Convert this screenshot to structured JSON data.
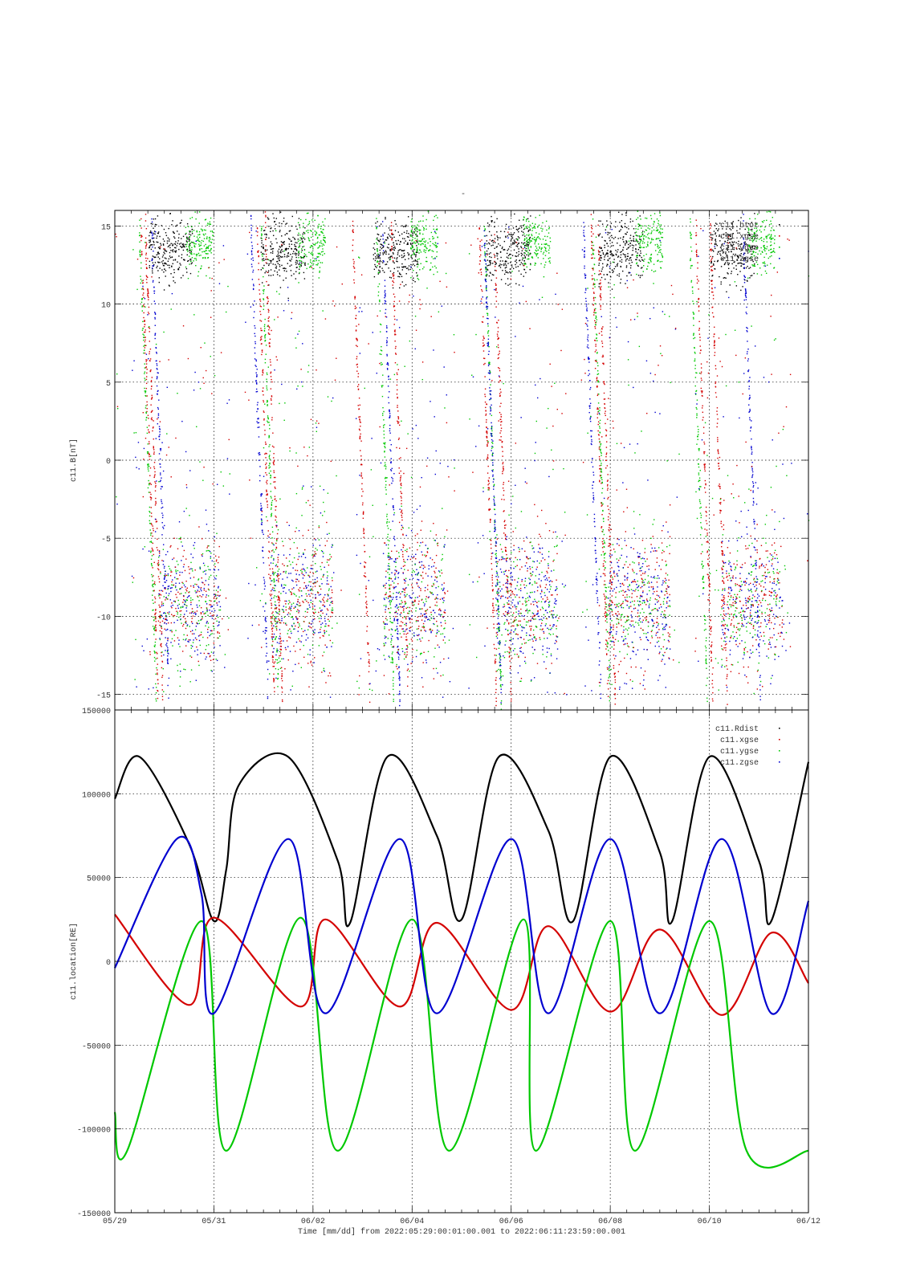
{
  "figure": {
    "top_title": "-",
    "footer_label": "Time [mm/dd]  from 2022:05:29:00:01:00.001  to  2022:06:11:23:59:00.001"
  },
  "colors": {
    "black": "#000000",
    "red": "#d40000",
    "green": "#00c800",
    "blue": "#0000d0",
    "grid": "#000000"
  },
  "chart_data": [
    {
      "type": "scatter",
      "title": "-",
      "ylabel": "c11.B[nT]",
      "xlabel": "",
      "xlim": [
        "2022-05-29",
        "2022-06-12"
      ],
      "ylim": [
        -16,
        16
      ],
      "y_ticks": [
        "-15",
        "-10",
        "-5",
        "0",
        "5",
        "10",
        "15"
      ],
      "x_ticks": [
        "05/29",
        "05/31",
        "06/02",
        "06/04",
        "06/06",
        "06/08",
        "06/10",
        "06/12"
      ],
      "grid": true,
      "legend_position": "top-right",
      "series": [
        {
          "name": "c11.btot",
          "color": "#000000"
        },
        {
          "name": "c11.xgse",
          "color": "#d40000"
        },
        {
          "name": "c11.ygse",
          "color": "#00c800"
        },
        {
          "name": "c11.zgse",
          "color": "#0000d0"
        }
      ]
    },
    {
      "type": "line",
      "title": "",
      "ylabel": "c11.location[RE]",
      "xlabel": "Time [mm/dd]  from 2022:05:29:00:01:00.001  to  2022:06:11:23:59:00.001",
      "xlim": [
        "2022-05-29",
        "2022-06-12"
      ],
      "ylim": [
        -150000,
        150000
      ],
      "y_ticks": [
        "-150000",
        "-100000",
        "-50000",
        "0",
        "50000",
        "100000",
        "150000"
      ],
      "x_ticks": [
        "05/29",
        "05/31",
        "06/02",
        "06/04",
        "06/06",
        "06/08",
        "06/10",
        "06/12"
      ],
      "grid": true,
      "legend_position": "top-right",
      "series": [
        {
          "name": "c11.Rdist",
          "color": "#000000",
          "x": [
            "2022-05-29T00:00",
            "2022-05-29T12:00",
            "2022-05-30T12:00",
            "2022-05-31T00:00",
            "2022-05-31T06:00",
            "2022-05-31T12:00",
            "2022-06-01T12:00",
            "2022-06-02T12:00",
            "2022-06-02T18:00",
            "2022-06-03T12:00",
            "2022-06-04T12:00",
            "2022-06-05T00:00",
            "2022-06-05T18:00",
            "2022-06-06T18:00",
            "2022-06-07T06:00",
            "2022-06-08T00:00",
            "2022-06-09T00:00",
            "2022-06-09T06:00",
            "2022-06-10T00:00",
            "2022-06-11T00:00",
            "2022-06-11T06:00",
            "2022-06-12T00:00"
          ],
          "y": [
            97000,
            122000,
            70000,
            24000,
            55000,
            105000,
            122000,
            60000,
            23000,
            122000,
            75000,
            25000,
            122000,
            78000,
            24000,
            122000,
            65000,
            24000,
            122000,
            60000,
            24000,
            119000
          ]
        },
        {
          "name": "c11.xgse",
          "color": "#d40000",
          "x": [
            "2022-05-29T00:00",
            "2022-05-30T12:00",
            "2022-05-31T00:00",
            "2022-06-01T18:00",
            "2022-06-02T06:00",
            "2022-06-03T18:00",
            "2022-06-04T12:00",
            "2022-06-06T00:00",
            "2022-06-06T18:00",
            "2022-06-08T00:00",
            "2022-06-09T00:00",
            "2022-06-10T06:00",
            "2022-06-11T06:00",
            "2022-06-12T00:00"
          ],
          "y": [
            28000,
            -26000,
            26000,
            -27000,
            25000,
            -27000,
            23000,
            -29000,
            21000,
            -30000,
            19000,
            -32000,
            17000,
            -13000
          ]
        },
        {
          "name": "c11.ygse",
          "color": "#00c800",
          "x": [
            "2022-05-29T00:00",
            "2022-05-29T06:00",
            "2022-05-30T18:00",
            "2022-05-31T06:00",
            "2022-06-01T18:00",
            "2022-06-02T12:00",
            "2022-06-04T00:00",
            "2022-06-04T18:00",
            "2022-06-06T06:00",
            "2022-06-06T12:00",
            "2022-06-08T00:00",
            "2022-06-08T12:00",
            "2022-06-10T00:00",
            "2022-06-10T18:00",
            "2022-06-12T00:00"
          ],
          "y": [
            -90000,
            -113000,
            24000,
            -113000,
            26000,
            -113000,
            25000,
            -113000,
            25000,
            -113000,
            24000,
            -113000,
            24000,
            -113000,
            -113000
          ]
        },
        {
          "name": "c11.zgse",
          "color": "#0000d0",
          "x": [
            "2022-05-29T00:00",
            "2022-05-30T06:00",
            "2022-05-30T18:00",
            "2022-05-31T00:00",
            "2022-06-01T12:00",
            "2022-06-02T06:00",
            "2022-06-03T18:00",
            "2022-06-04T12:00",
            "2022-06-06T00:00",
            "2022-06-06T18:00",
            "2022-06-08T00:00",
            "2022-06-09T00:00",
            "2022-06-10T06:00",
            "2022-06-11T06:00",
            "2022-06-12T00:00"
          ],
          "y": [
            -4000,
            73000,
            40000,
            -31000,
            73000,
            -31000,
            73000,
            -31000,
            73000,
            -31000,
            73000,
            -31000,
            73000,
            -31000,
            36000
          ]
        }
      ]
    }
  ]
}
